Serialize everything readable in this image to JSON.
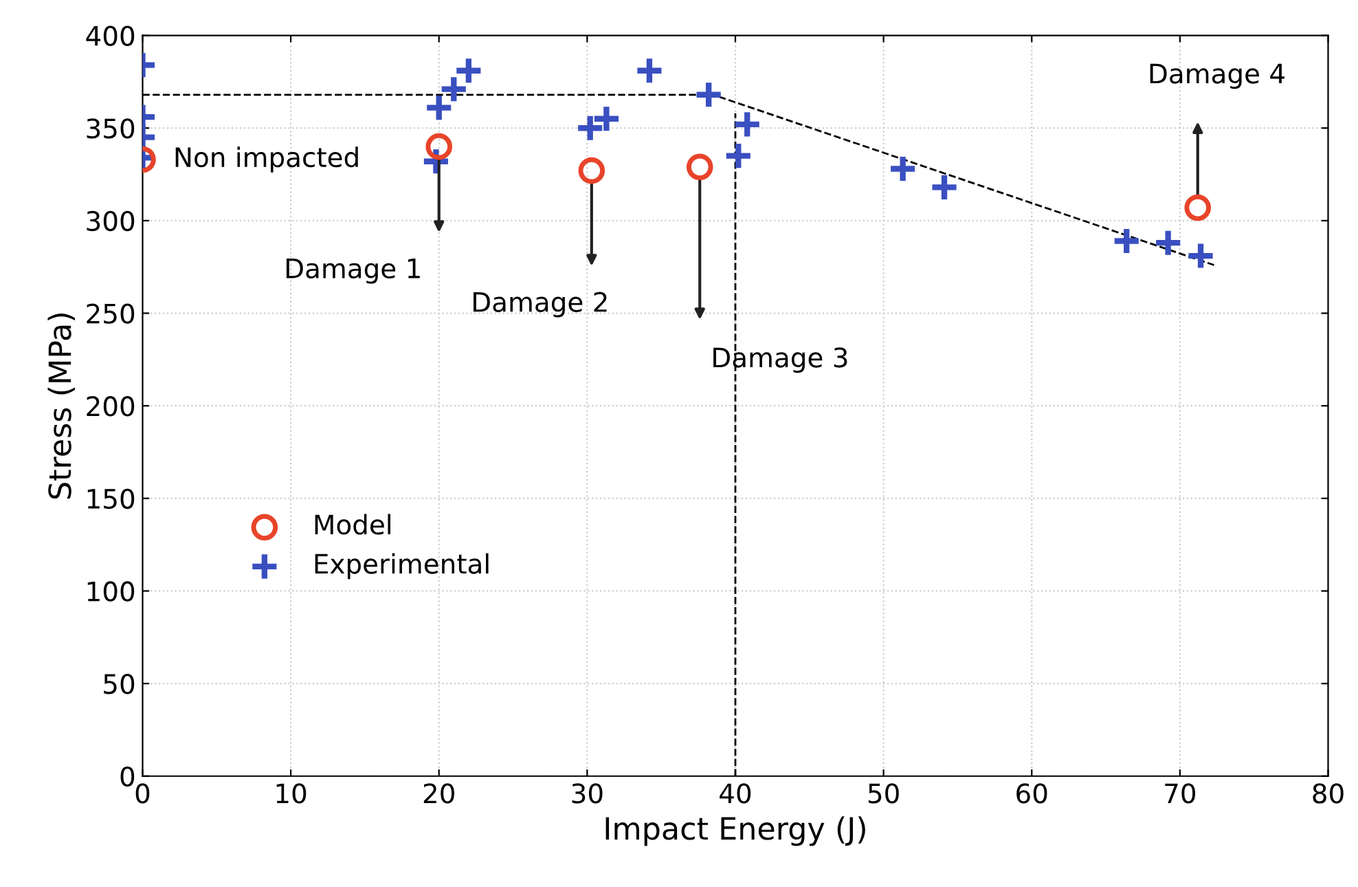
{
  "chart_data": {
    "type": "scatter",
    "xlabel": "Impact Energy (J)",
    "ylabel": "Stress (MPa)",
    "xlim": [
      0,
      80
    ],
    "xticks": [
      0,
      10,
      20,
      30,
      40,
      50,
      60,
      70,
      80
    ],
    "ylim": [
      0,
      400
    ],
    "yticks": [
      0,
      50,
      100,
      150,
      200,
      250,
      300,
      350,
      400
    ],
    "grid": true,
    "legend": "center left",
    "series": [
      {
        "name": "Model",
        "marker": "circle",
        "color": "#e8442a",
        "x": [
          0,
          20.0,
          30.3,
          37.6,
          71.2
        ],
        "values": [
          333,
          340,
          327,
          329,
          307
        ]
      },
      {
        "name": "Experimental",
        "marker": "cross",
        "color": "#3a4fc0",
        "x": [
          0,
          0,
          0,
          0,
          19.8,
          20.0,
          21.0,
          22.0,
          30.2,
          31.3,
          34.2,
          38.2,
          40.2,
          40.8,
          51.3,
          54.1,
          66.4,
          69.2,
          71.4
        ],
        "values": [
          384,
          356,
          345,
          334,
          332,
          361,
          371,
          381,
          350,
          355,
          381,
          368,
          335,
          352,
          328,
          318,
          289,
          288,
          281
        ]
      },
      {
        "type": "line",
        "line_style": "dashed",
        "color": "#000000",
        "x": [
          0,
          38.5,
          72.3
        ],
        "values": [
          368,
          368,
          276
        ]
      },
      {
        "type": "line",
        "line_style": "dashed",
        "color": "#000000",
        "x": [
          40,
          40
        ],
        "values": [
          0,
          358
        ]
      }
    ],
    "annotations": [
      "Non impacted",
      "Damage 1",
      "Damage 2",
      "Damage 3",
      "Damage 4"
    ]
  }
}
